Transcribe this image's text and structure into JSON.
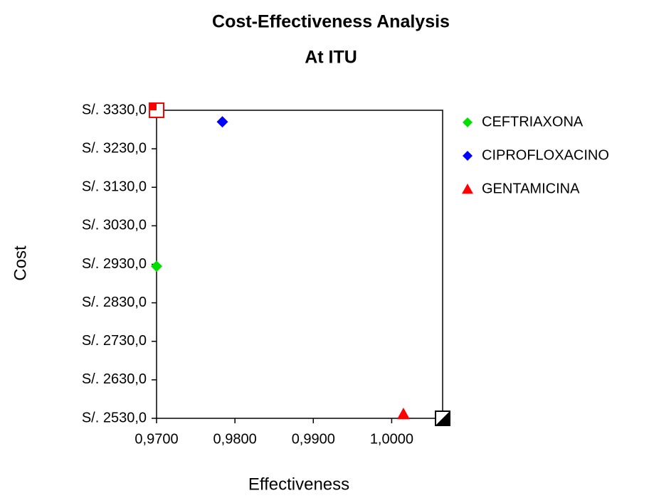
{
  "chart_data": {
    "type": "scatter",
    "title": "Cost-Effectiveness Analysis",
    "subtitle": "At ITU",
    "x_label": "Effectiveness",
    "y_label": "Cost",
    "xlim": [
      0.97,
      1.0065
    ],
    "ylim": [
      2530,
      3330
    ],
    "xticks": [
      {
        "value": 0.97,
        "label": "0,9700"
      },
      {
        "value": 0.98,
        "label": "0,9800"
      },
      {
        "value": 0.99,
        "label": "0,9900"
      },
      {
        "value": 1.0,
        "label": "1,0000"
      }
    ],
    "yticks": [
      {
        "value": 2530,
        "label": "S/. 2530,0"
      },
      {
        "value": 2630,
        "label": "S/. 2630,0"
      },
      {
        "value": 2730,
        "label": "S/. 2730,0"
      },
      {
        "value": 2830,
        "label": "S/. 2830,0"
      },
      {
        "value": 2930,
        "label": "S/. 2930,0"
      },
      {
        "value": 3030,
        "label": "S/. 3030,0"
      },
      {
        "value": 3130,
        "label": "S/. 3130,0"
      },
      {
        "value": 3230,
        "label": "S/. 3230,0"
      },
      {
        "value": 3330,
        "label": "S/. 3330,0"
      }
    ],
    "legend_position": "right",
    "series": [
      {
        "name": "CEFTRIAXONA",
        "color": "#00e000",
        "marker": "diamond",
        "x": [
          0.97
        ],
        "values": [
          2925
        ]
      },
      {
        "name": "CIPROFLOXACINO",
        "color": "#0000ff",
        "marker": "diamond",
        "x": [
          0.9784
        ],
        "values": [
          3300
        ]
      },
      {
        "name": "GENTAMICINA",
        "color": "#ff0000",
        "marker": "triangle",
        "x": [
          1.0015
        ],
        "values": [
          2541
        ]
      }
    ],
    "reference_points": [
      {
        "color": "#ff0000",
        "x": 0.97,
        "y": 3330
      },
      {
        "color": "#000000",
        "x": 1.0065,
        "y": 2530
      }
    ]
  }
}
